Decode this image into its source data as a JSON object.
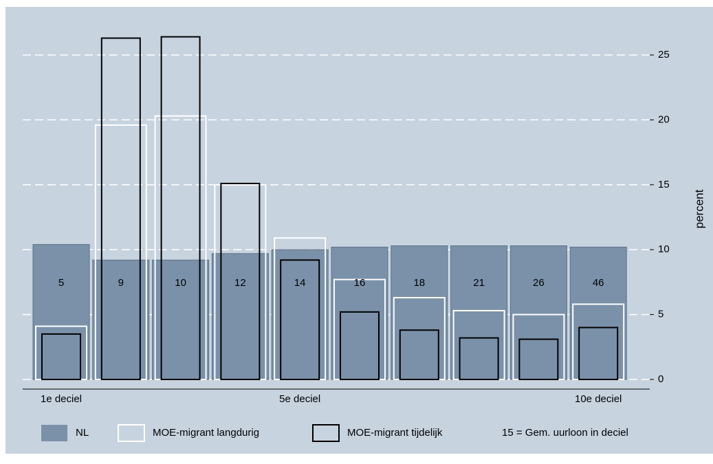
{
  "chart_data": {
    "type": "bar",
    "categories": [
      "1e deciel",
      null,
      null,
      null,
      "5e deciel",
      null,
      null,
      null,
      null,
      "10e deciel"
    ],
    "series": [
      {
        "name": "NL",
        "color": "#7b91a9",
        "filled": true,
        "values": [
          10.4,
          9.2,
          9.2,
          9.7,
          10.0,
          10.2,
          10.3,
          10.3,
          10.3,
          10.2
        ]
      },
      {
        "name": "MOE-migrant langdurig",
        "color": "#ffffff",
        "filled": false,
        "values": [
          4.1,
          19.6,
          20.3,
          15.0,
          10.9,
          7.7,
          6.3,
          5.3,
          5.0,
          5.8
        ]
      },
      {
        "name": "MOE-migrant tijdelijk",
        "color": "#000000",
        "filled": false,
        "values": [
          3.5,
          26.3,
          26.4,
          15.1,
          9.2,
          5.2,
          3.8,
          3.2,
          3.1,
          4.0
        ]
      }
    ],
    "wage_labels": [
      "5",
      "9",
      "10",
      "12",
      "14",
      "16",
      "18",
      "21",
      "26",
      "46"
    ],
    "note": "15 = Gem. uurloon in deciel",
    "ylabel": "percent",
    "ylim": [
      0,
      25
    ],
    "yticks": [
      0,
      5,
      10,
      15,
      20,
      25
    ],
    "grid": true,
    "y_axis_side": "right"
  }
}
